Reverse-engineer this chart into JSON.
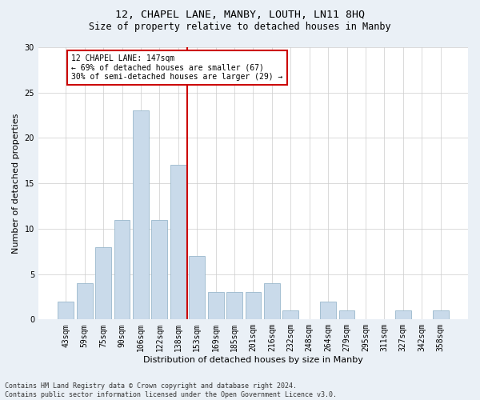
{
  "title1": "12, CHAPEL LANE, MANBY, LOUTH, LN11 8HQ",
  "title2": "Size of property relative to detached houses in Manby",
  "xlabel": "Distribution of detached houses by size in Manby",
  "ylabel": "Number of detached properties",
  "bar_labels": [
    "43sqm",
    "59sqm",
    "75sqm",
    "90sqm",
    "106sqm",
    "122sqm",
    "138sqm",
    "153sqm",
    "169sqm",
    "185sqm",
    "201sqm",
    "216sqm",
    "232sqm",
    "248sqm",
    "264sqm",
    "279sqm",
    "295sqm",
    "311sqm",
    "327sqm",
    "342sqm",
    "358sqm"
  ],
  "bar_heights": [
    2,
    4,
    8,
    11,
    23,
    11,
    17,
    7,
    3,
    3,
    3,
    4,
    1,
    0,
    2,
    1,
    0,
    0,
    1,
    0,
    1
  ],
  "bar_color": "#c9daea",
  "bar_edge_color": "#9ab8cc",
  "vline_color": "#cc0000",
  "annotation_title": "12 CHAPEL LANE: 147sqm",
  "annotation_line1": "← 69% of detached houses are smaller (67)",
  "annotation_line2": "30% of semi-detached houses are larger (29) →",
  "annotation_box_color": "#cc0000",
  "ylim": [
    0,
    30
  ],
  "yticks": [
    0,
    5,
    10,
    15,
    20,
    25,
    30
  ],
  "footer1": "Contains HM Land Registry data © Crown copyright and database right 2024.",
  "footer2": "Contains public sector information licensed under the Open Government Licence v3.0.",
  "bg_color": "#eaf0f6",
  "plot_bg_color": "#ffffff",
  "title1_fontsize": 9.5,
  "title2_fontsize": 8.5,
  "xlabel_fontsize": 8,
  "ylabel_fontsize": 8,
  "tick_fontsize": 7,
  "footer_fontsize": 6,
  "annot_fontsize": 7
}
